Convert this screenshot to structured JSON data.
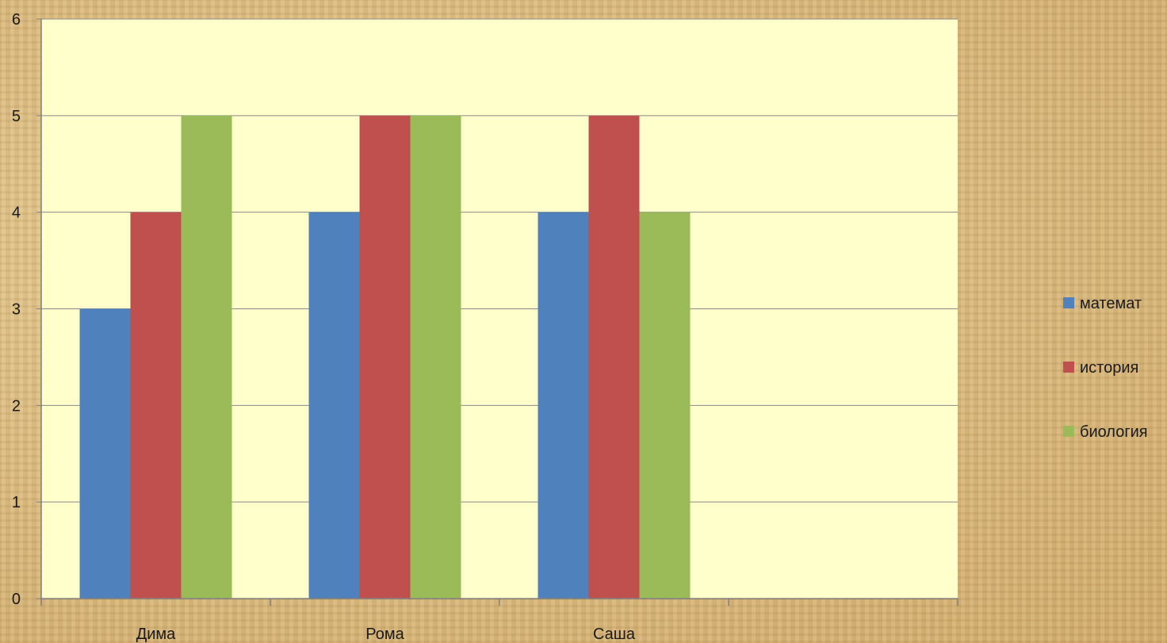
{
  "chart_data": {
    "type": "bar",
    "categories": [
      "Дима",
      "Рома",
      "Саша",
      ""
    ],
    "series": [
      {
        "name": "математ",
        "values": [
          3,
          4,
          4,
          null
        ],
        "color": "#4f81bd"
      },
      {
        "name": "история",
        "values": [
          4,
          5,
          5,
          null
        ],
        "color": "#c0504d"
      },
      {
        "name": "биология",
        "values": [
          5,
          5,
          4,
          null
        ],
        "color": "#9bbb59"
      }
    ],
    "title": "",
    "xlabel": "",
    "ylabel": "",
    "ylim": [
      0,
      6
    ],
    "yticks": [
      "0",
      "1",
      "2",
      "3",
      "4",
      "5",
      "6"
    ],
    "grid": true,
    "legend_position": "right",
    "plot_background": "#ffffcc"
  }
}
